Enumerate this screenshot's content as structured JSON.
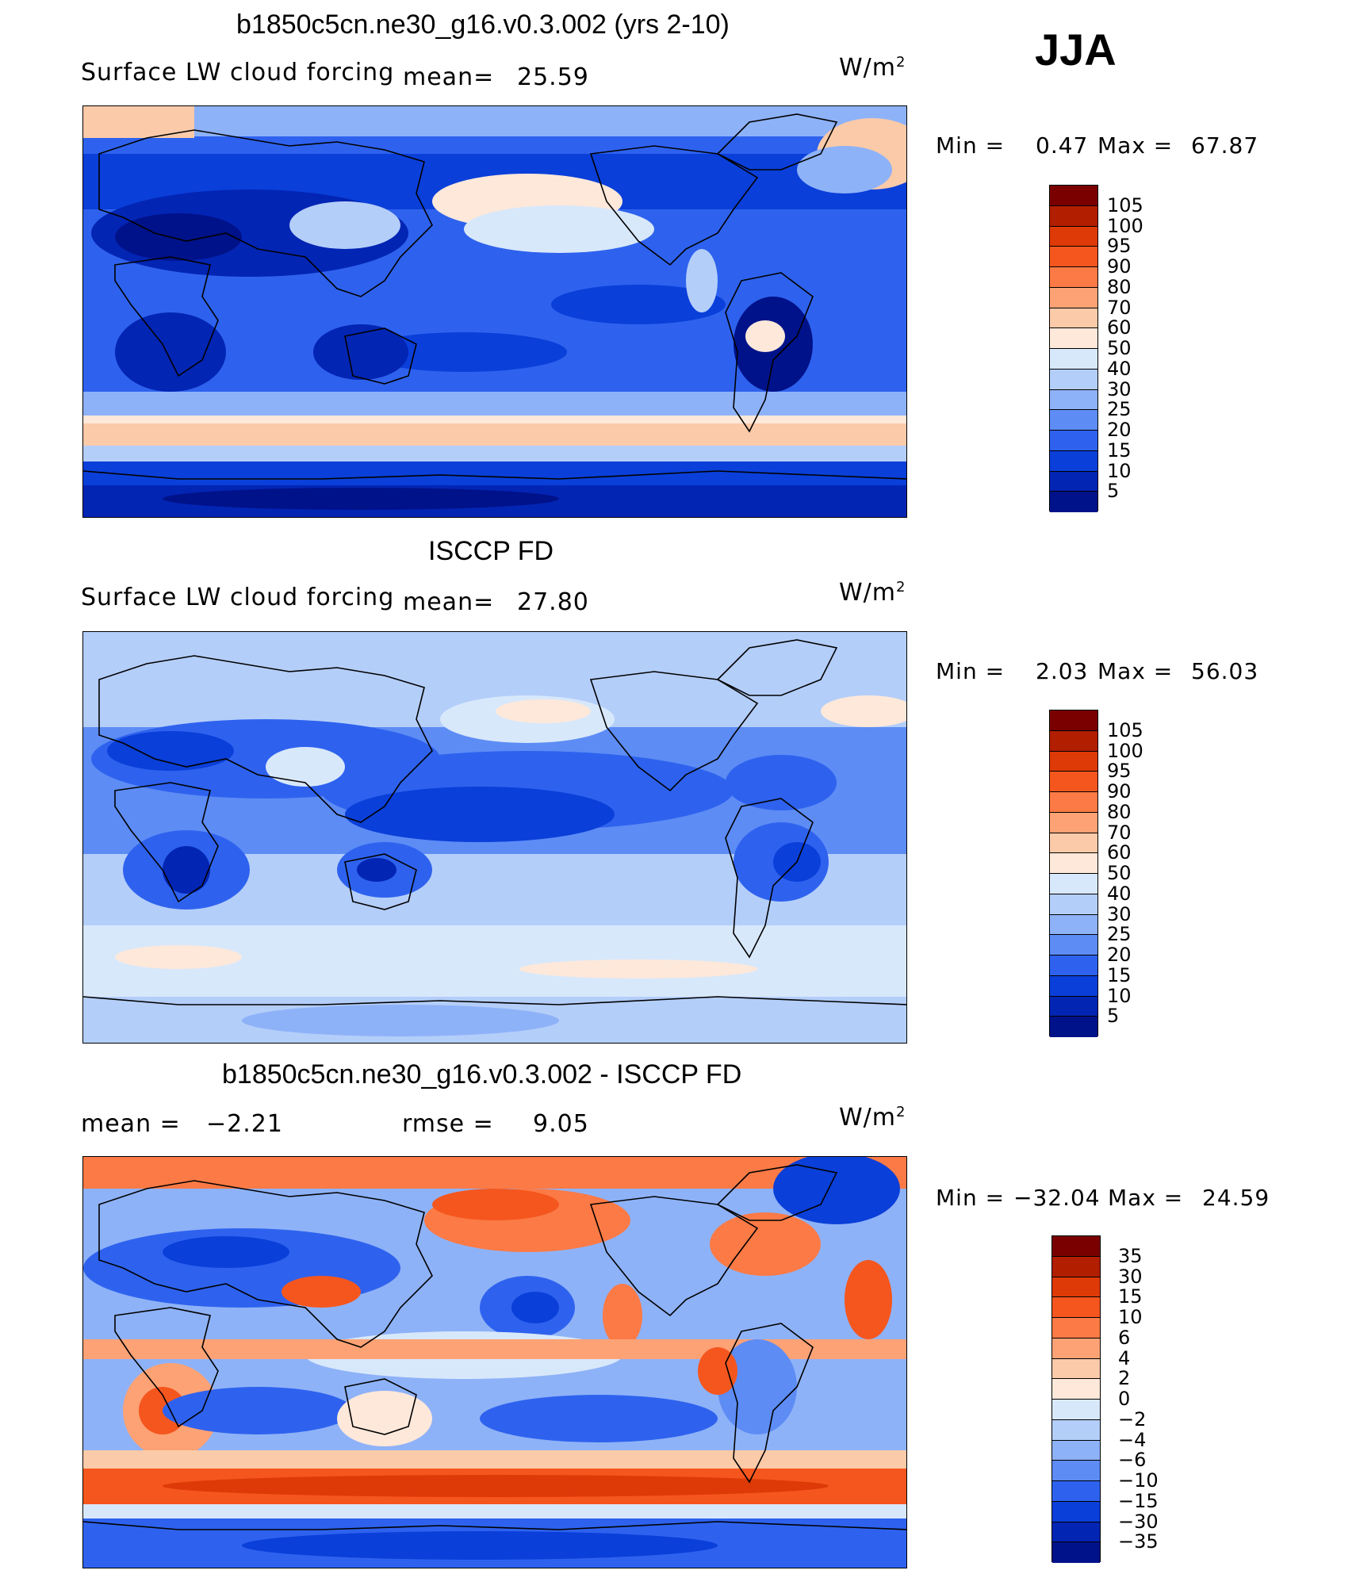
{
  "season": "JJA",
  "panels": [
    {
      "title": "b1850c5cn.ne30_g16.v0.3.002 (yrs 2-10)",
      "variable": "Surface LW cloud forcing",
      "mean_label": "mean=",
      "mean_value": "25.59",
      "units_base": "W/m",
      "units_exp": "2",
      "min_label": "Min =",
      "min_value": "0.47",
      "max_label": "Max =",
      "max_value": "67.87",
      "colorbar_levels": [
        "105",
        "100",
        "95",
        "90",
        "80",
        "70",
        "60",
        "50",
        "40",
        "30",
        "25",
        "20",
        "15",
        "10",
        "5"
      ]
    },
    {
      "title": "ISCCP FD",
      "variable": "Surface LW cloud forcing",
      "mean_label": "mean=",
      "mean_value": "27.80",
      "units_base": "W/m",
      "units_exp": "2",
      "min_label": "Min =",
      "min_value": "2.03",
      "max_label": "Max =",
      "max_value": "56.03",
      "colorbar_levels": [
        "105",
        "100",
        "95",
        "90",
        "80",
        "70",
        "60",
        "50",
        "40",
        "30",
        "25",
        "20",
        "15",
        "10",
        "5"
      ]
    },
    {
      "title": "b1850c5cn.ne30_g16.v0.3.002 - ISCCP FD",
      "mean_label": "mean =",
      "mean_value": "−2.21",
      "rmse_label": "rmse =",
      "rmse_value": "9.05",
      "units_base": "W/m",
      "units_exp": "2",
      "min_label": "Min =",
      "min_value": "−32.04",
      "max_label": "Max =",
      "max_value": "24.59",
      "colorbar_levels": [
        "35",
        "30",
        "15",
        "10",
        "6",
        "4",
        "2",
        "0",
        "−2",
        "−4",
        "−6",
        "−10",
        "−15",
        "−30",
        "−35"
      ]
    }
  ],
  "colors": {
    "abs_scale": [
      "#7a0000",
      "#b21e00",
      "#de3a08",
      "#f5561e",
      "#fb7a45",
      "#fca275",
      "#fbcaa8",
      "#fde8da",
      "#d8e8fb",
      "#b4cefa",
      "#8eb2f8",
      "#5d8cf5",
      "#2e62ee",
      "#0a3fd9",
      "#0325b4",
      "#00128a"
    ],
    "diff_scale": [
      "#7a0000",
      "#b21e00",
      "#de3a08",
      "#f5561e",
      "#fb7a45",
      "#fca275",
      "#fbcaa8",
      "#fde8da",
      "#d8e8fb",
      "#b4cefa",
      "#8eb2f8",
      "#5d8cf5",
      "#2e62ee",
      "#0a3fd9",
      "#0325b4",
      "#00128a"
    ],
    "coast": "#000000"
  }
}
